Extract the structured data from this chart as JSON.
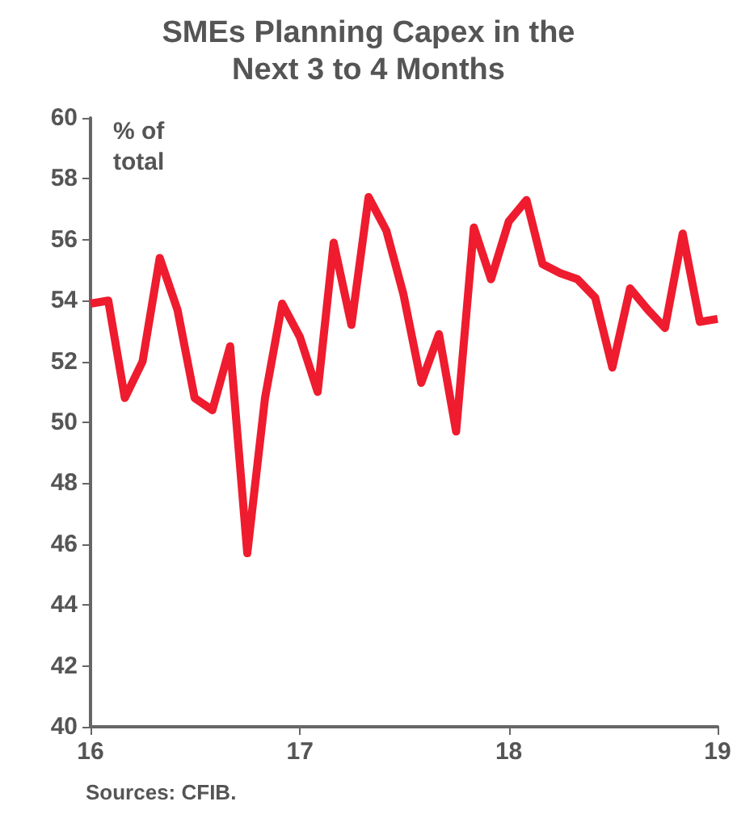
{
  "chart_data": {
    "type": "line",
    "title": "SMEs Planning Capex in the\nNext 3 to 4 Months",
    "ylabel": "% of\ntotal",
    "annotations": [
      "Sources: CFIB."
    ],
    "x": [
      "2016-01",
      "2016-02",
      "2016-03",
      "2016-04",
      "2016-05",
      "2016-06",
      "2016-07",
      "2016-08",
      "2016-09",
      "2016-10",
      "2016-11",
      "2016-12",
      "2017-01",
      "2017-02",
      "2017-03",
      "2017-04",
      "2017-05",
      "2017-06",
      "2017-07",
      "2017-08",
      "2017-09",
      "2017-10",
      "2017-11",
      "2017-12",
      "2018-01",
      "2018-02",
      "2018-03",
      "2018-04",
      "2018-05",
      "2018-06",
      "2018-07",
      "2018-08",
      "2018-09",
      "2018-10",
      "2018-11",
      "2018-12",
      "2019-01"
    ],
    "series": [
      {
        "color": "#ee1c2e",
        "values": [
          53.9,
          54.0,
          50.8,
          52.0,
          55.4,
          53.7,
          50.8,
          50.4,
          52.5,
          45.7,
          50.8,
          53.9,
          52.8,
          51.0,
          55.9,
          53.2,
          57.4,
          56.3,
          54.2,
          51.3,
          52.9,
          49.7,
          56.4,
          54.7,
          56.6,
          57.3,
          55.2,
          54.9,
          54.7,
          54.1,
          51.8,
          54.4,
          53.7,
          53.1,
          56.2,
          53.3,
          53.4
        ]
      }
    ],
    "xlim": [
      "2016-01",
      "2019-01"
    ],
    "xticks": [
      {
        "value": "2016-01",
        "label": "16"
      },
      {
        "value": "2017-01",
        "label": "17"
      },
      {
        "value": "2018-01",
        "label": "18"
      },
      {
        "value": "2019-01",
        "label": "19"
      }
    ],
    "ylim": [
      40,
      60
    ],
    "yticks": [
      40,
      42,
      44,
      46,
      48,
      50,
      52,
      54,
      56,
      58,
      60
    ],
    "grid": false,
    "marker": "none",
    "line_style": "solid"
  }
}
